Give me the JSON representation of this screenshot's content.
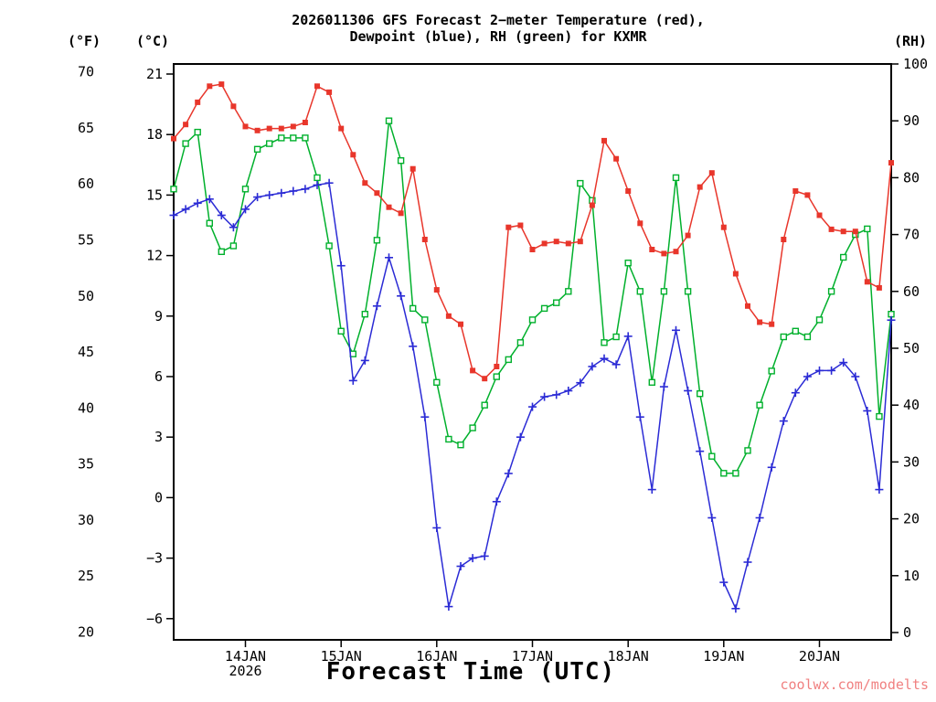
{
  "header": {
    "title_line1": "2026011306 GFS Forecast 2−meter Temperature (red),",
    "title_line2": "Dewpoint (blue), RH (green) for KXMR"
  },
  "axis_unit_labels": {
    "fahrenheit": "(°F)",
    "celsius": "(°C)",
    "rh": "(RH)"
  },
  "footer": {
    "watermark": "coolwx.com/modelts"
  },
  "chart_data": {
    "type": "line",
    "station": "KXMR",
    "x_axis": {
      "label": "Forecast Time (UTC)",
      "range": [
        0,
        180
      ],
      "hours": [
        0,
        3,
        6,
        9,
        12,
        15,
        18,
        21,
        24,
        27,
        30,
        33,
        36,
        39,
        42,
        45,
        48,
        51,
        54,
        57,
        60,
        63,
        66,
        69,
        72,
        75,
        78,
        81,
        84,
        87,
        90,
        93,
        96,
        99,
        102,
        105,
        108,
        111,
        114,
        117,
        120,
        123,
        126,
        129,
        132,
        135,
        138,
        141,
        144,
        147,
        150,
        153,
        156,
        159,
        162,
        165,
        168,
        171,
        174,
        177,
        180
      ],
      "tick_hours": [
        18,
        42,
        66,
        90,
        114,
        138,
        162
      ],
      "tick_labels": [
        "14JAN",
        "15JAN",
        "16JAN",
        "17JAN",
        "18JAN",
        "19JAN",
        "20JAN"
      ],
      "year_label": "2026"
    },
    "y_axis_celsius": {
      "ticks": [
        21,
        18,
        15,
        12,
        9,
        6,
        3,
        0,
        -3,
        -6
      ],
      "range": [
        -7.05,
        21.5
      ]
    },
    "y_axis_fahrenheit": {
      "ticks": [
        70,
        65,
        60,
        55,
        50,
        45,
        40,
        35,
        30,
        25,
        20
      ]
    },
    "y_axis_rh": {
      "ticks": [
        100,
        90,
        80,
        70,
        60,
        50,
        40,
        30,
        20,
        10,
        0
      ],
      "range": [
        -1.29,
        100
      ]
    },
    "grid": false,
    "series": [
      {
        "id": "temperature",
        "name": "2-meter Temperature (red)",
        "color": "#e8362b",
        "marker": "filled-square",
        "axis": "celsius",
        "values": [
          17.8,
          18.5,
          19.6,
          20.4,
          20.5,
          19.4,
          18.4,
          18.2,
          18.3,
          18.3,
          18.4,
          18.6,
          20.4,
          20.1,
          18.3,
          17.0,
          15.6,
          15.1,
          14.4,
          14.1,
          16.3,
          12.8,
          10.3,
          9.0,
          8.6,
          6.3,
          5.9,
          6.5,
          13.4,
          13.5,
          12.3,
          12.6,
          12.7,
          12.6,
          12.7,
          14.5,
          17.7,
          16.8,
          15.2,
          13.6,
          12.3,
          12.1,
          12.2,
          13.0,
          15.4,
          16.1,
          13.4,
          11.1,
          9.5,
          8.7,
          8.6,
          12.8,
          15.2,
          15.0,
          14.0,
          13.3,
          13.2,
          13.2,
          10.7,
          10.4,
          16.6
        ]
      },
      {
        "id": "dewpoint",
        "name": "Dewpoint (blue)",
        "color": "#2b2bd5",
        "marker": "plus",
        "axis": "celsius",
        "values": [
          14.0,
          14.3,
          14.6,
          14.8,
          14.0,
          13.4,
          14.3,
          14.9,
          15.0,
          15.1,
          15.2,
          15.3,
          15.5,
          15.6,
          11.5,
          5.8,
          6.8,
          9.5,
          11.9,
          10.0,
          7.5,
          4.0,
          -1.5,
          -5.4,
          -3.4,
          -3.0,
          -2.9,
          -0.2,
          1.2,
          3.0,
          4.5,
          5.0,
          5.1,
          5.3,
          5.7,
          6.5,
          6.9,
          6.6,
          8.0,
          4.0,
          0.4,
          5.5,
          8.3,
          5.3,
          2.3,
          -1.0,
          -4.2,
          -5.5,
          -3.2,
          -1.0,
          1.5,
          3.8,
          5.2,
          6.0,
          6.3,
          6.3,
          6.7,
          6.0,
          4.3,
          0.4,
          8.8
        ]
      },
      {
        "id": "rh",
        "name": "RH (green)",
        "color": "#00b02c",
        "marker": "open-square",
        "axis": "rh",
        "values": [
          78,
          86,
          88,
          72,
          67,
          68,
          78,
          85,
          86,
          87,
          87,
          87,
          80,
          68,
          53,
          49,
          56,
          69,
          90,
          83,
          57,
          55,
          44,
          34,
          33,
          36,
          40,
          45,
          48,
          51,
          55,
          57,
          58,
          60,
          79,
          76,
          51,
          52,
          65,
          60,
          44,
          60,
          80,
          60,
          42,
          31,
          28,
          28,
          32,
          40,
          46,
          52,
          53,
          52,
          55,
          60,
          66,
          70,
          71,
          38,
          56
        ]
      }
    ]
  }
}
